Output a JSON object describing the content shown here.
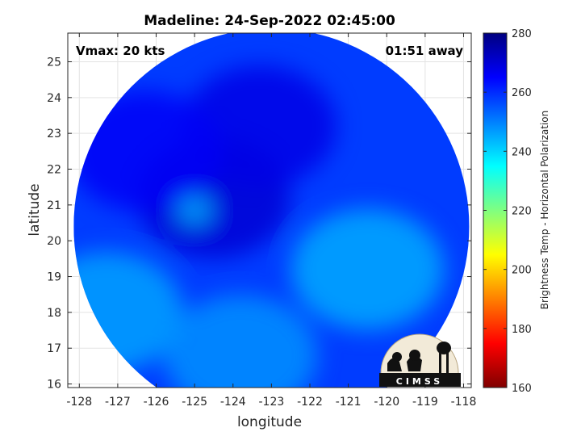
{
  "chart_data": {
    "type": "heatmap",
    "title": "Madeline: 24-Sep-2022 02:45:00",
    "xlabel": "longitude",
    "ylabel": "latitude",
    "xlim": [
      -128.3,
      -117.8
    ],
    "ylim": [
      15.9,
      25.8
    ],
    "xticks": [
      -128,
      -127,
      -126,
      -125,
      -124,
      -123,
      -122,
      -121,
      -120,
      -119,
      -118
    ],
    "yticks": [
      16,
      17,
      18,
      19,
      20,
      21,
      22,
      23,
      24,
      25
    ],
    "grid": true,
    "annotations": {
      "top_left": "Vmax: 20 kts",
      "top_right": "01:51 away"
    },
    "colorbar": {
      "label": "Brightness Temp - Horizontal Polarization",
      "range": [
        160,
        280
      ],
      "ticks": [
        280,
        260,
        240,
        220,
        200,
        180,
        160
      ],
      "colors": [
        "#800000",
        "#ff0000",
        "#ff8000",
        "#ffff00",
        "#80ff80",
        "#00ffff",
        "#0080ff",
        "#0000ff",
        "#000080"
      ]
    },
    "swath": {
      "center_lon": -123.0,
      "center_lat": 20.4,
      "radius_deg": 5.6,
      "background_value": 258,
      "features": [
        {
          "name": "cold-band-inner-spiral",
          "lon": -124.5,
          "lat": 21.2,
          "value": 270
        },
        {
          "name": "cold-band-north",
          "lon": -123.3,
          "lat": 23.2,
          "value": 268
        },
        {
          "name": "cold-band-west",
          "lon": -126.3,
          "lat": 22.5,
          "value": 266
        },
        {
          "name": "warm-region-east",
          "lon": -120.5,
          "lat": 19.2,
          "value": 245
        },
        {
          "name": "warm-region-southwest",
          "lon": -127.3,
          "lat": 18.0,
          "value": 246
        },
        {
          "name": "warm-region-south",
          "lon": -123.8,
          "lat": 16.8,
          "value": 248
        },
        {
          "name": "eye-spot",
          "lon": -125.0,
          "lat": 20.85,
          "value": 244
        }
      ]
    }
  }
}
